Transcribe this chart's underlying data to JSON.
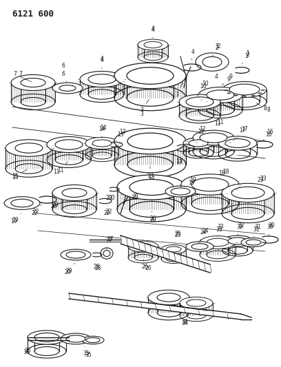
{
  "title": "6121 600",
  "bg_color": "#ffffff",
  "line_color": "#1a1a1a",
  "figsize": [
    4.08,
    5.33
  ],
  "dpi": 100
}
